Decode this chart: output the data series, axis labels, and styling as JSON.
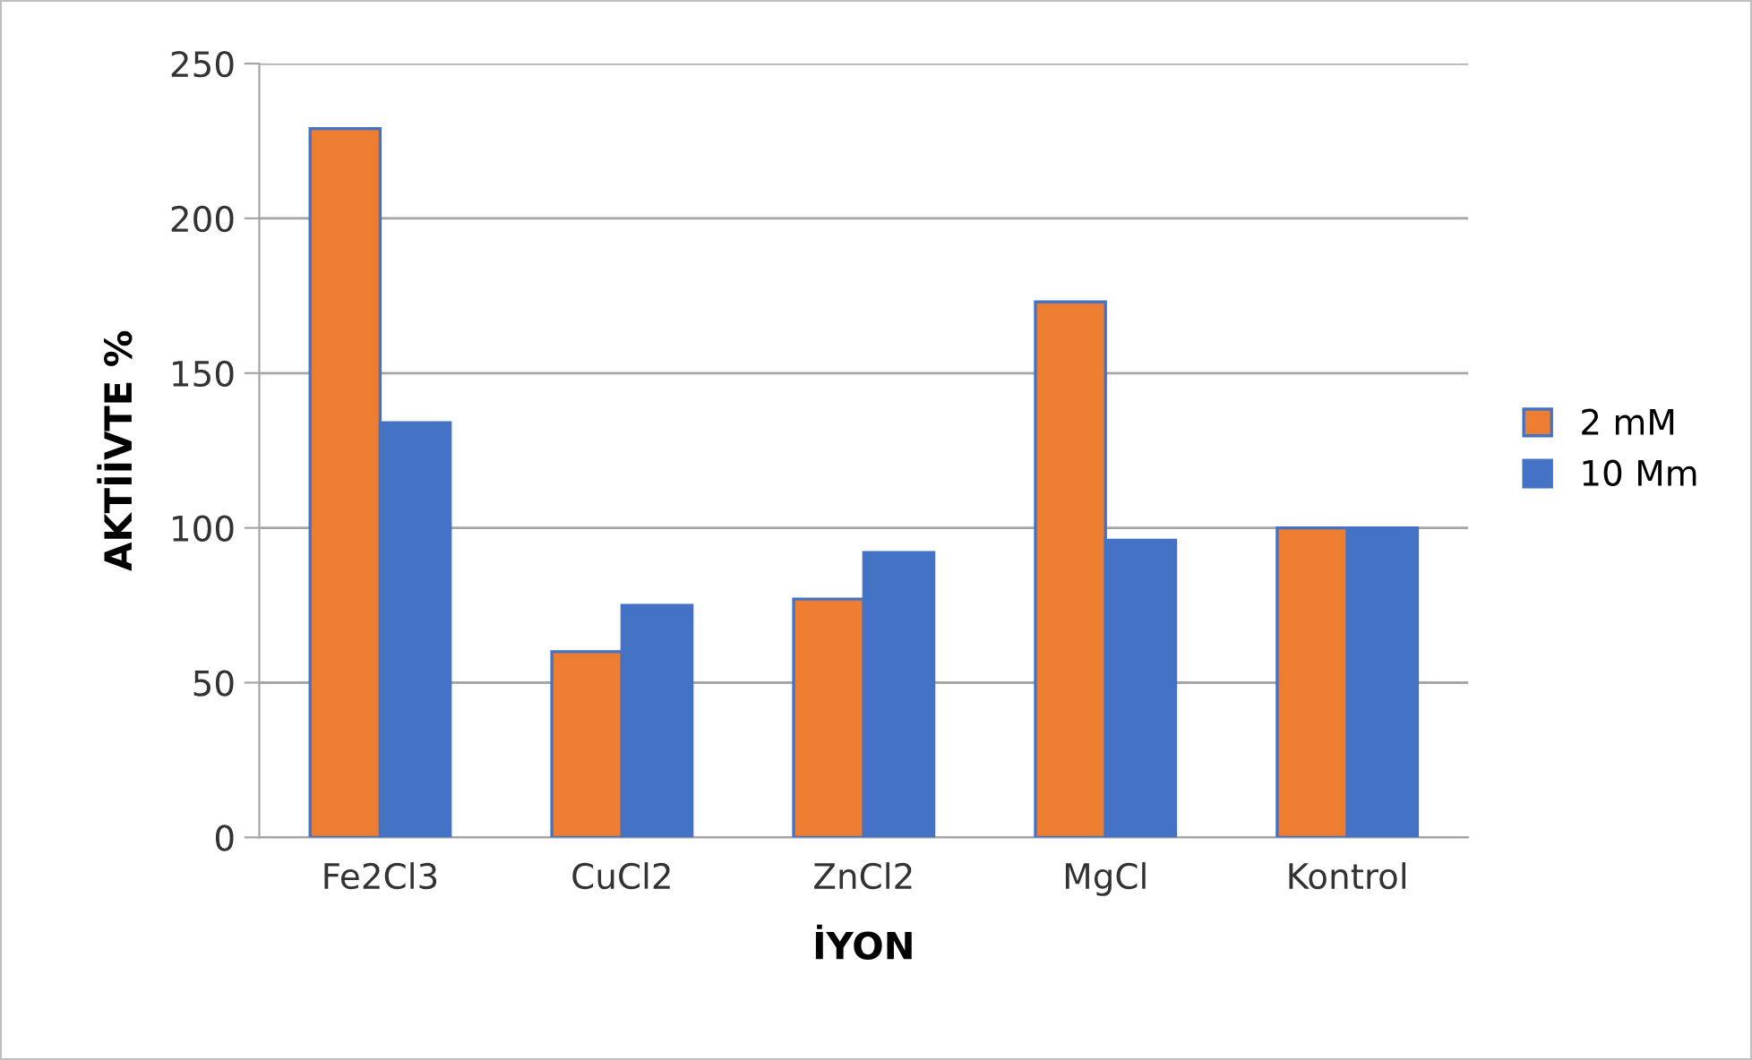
{
  "chart_data": {
    "type": "bar",
    "xlabel": "İYON",
    "ylabel": "AKTİİVTE %",
    "categories": [
      "Fe2Cl3",
      "CuCl2",
      "ZnCl2",
      "MgCl",
      "Kontrol"
    ],
    "series": [
      {
        "name": "2 mM",
        "color": "#ed7d31",
        "values": [
          229,
          60,
          77,
          173,
          100
        ]
      },
      {
        "name": "10 Mm",
        "color": "#4472c4",
        "values": [
          134,
          75,
          92,
          96,
          100
        ]
      }
    ],
    "ylim": [
      0,
      250
    ],
    "yticks": [
      0,
      50,
      100,
      150,
      200,
      250
    ],
    "grid": "y",
    "legend": "right"
  }
}
